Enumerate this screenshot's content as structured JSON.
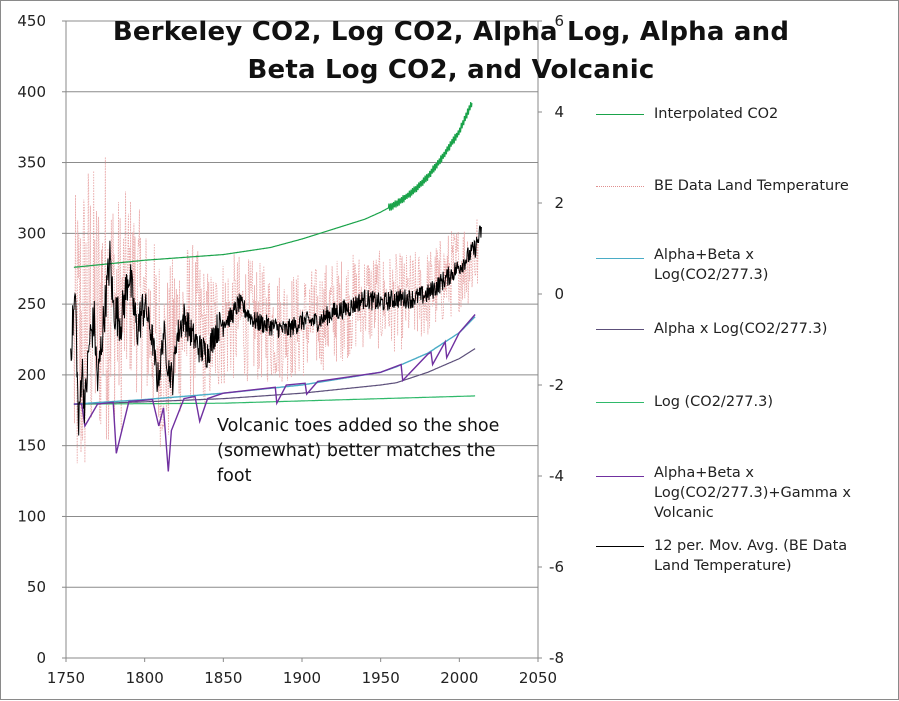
{
  "chart_data": {
    "type": "line",
    "title_lines": [
      "Berkeley CO2, Log CO2, Alpha Log, Alpha and",
      "Beta Log CO2, and Volcanic"
    ],
    "xlim": [
      1750,
      2050
    ],
    "x_ticks": [
      1750,
      1800,
      1850,
      1900,
      1950,
      2000,
      2050
    ],
    "ylim_left": [
      0,
      450
    ],
    "y_left_ticks": [
      0,
      50,
      100,
      150,
      200,
      250,
      300,
      350,
      400,
      450
    ],
    "ylim_right": [
      -8,
      6
    ],
    "y_right_ticks": [
      -8,
      -6,
      -4,
      -2,
      0,
      2,
      4,
      6
    ],
    "grid": "horizontal",
    "legend_position": "right",
    "annotation": "Volcanic toes added so the shoe (somewhat) better matches the foot",
    "series": [
      {
        "name": "Interpolated CO2",
        "axis": "left",
        "color": "#1aa34a",
        "x": [
          1755,
          1800,
          1850,
          1880,
          1900,
          1920,
          1940,
          1950,
          1960,
          1970,
          1980,
          1990,
          2000,
          2008
        ],
        "values": [
          276,
          281,
          285,
          290,
          296,
          303,
          310,
          315,
          321,
          329,
          340,
          355,
          372,
          392
        ]
      },
      {
        "name": "BE Data Land Temperature",
        "axis": "right",
        "color": "#e8a5a5",
        "x": [
          1755,
          1760,
          1765,
          1770,
          1775,
          1780,
          1785,
          1790,
          1800,
          1810,
          1815,
          1820,
          1830,
          1840,
          1850,
          1860,
          1880,
          1900,
          1920,
          1940,
          1960,
          1980,
          2000,
          2012
        ],
        "values": [
          -1.5,
          -1.0,
          -0.3,
          -0.5,
          0.0,
          -0.2,
          -0.5,
          0.2,
          -0.4,
          -1.2,
          -1.5,
          -0.8,
          -0.6,
          -1.0,
          -0.6,
          -0.5,
          -0.7,
          -0.7,
          -0.4,
          -0.1,
          -0.2,
          0.0,
          0.6,
          0.9
        ],
        "spread": [
          3.5,
          4.0,
          3.6,
          3.0,
          3.4,
          2.8,
          2.6,
          2.2,
          2.0,
          2.2,
          2.0,
          2.0,
          1.8,
          1.6,
          1.5,
          1.4,
          1.3,
          1.2,
          1.2,
          1.1,
          1.1,
          1.0,
          1.0,
          1.0
        ]
      },
      {
        "name": "Alpha+Beta x\nLog(CO2/277.3)",
        "axis": "right",
        "color": "#4aacc6",
        "x": [
          1755,
          1800,
          1850,
          1900,
          1950,
          1960,
          1980,
          2000,
          2010
        ],
        "values": [
          -2.42,
          -2.32,
          -2.18,
          -2.0,
          -1.72,
          -1.6,
          -1.3,
          -0.85,
          -0.5
        ]
      },
      {
        "name": "Alpha x Log(CO2/277.3)",
        "axis": "right",
        "color": "#5c4f7a",
        "x": [
          1755,
          1800,
          1850,
          1900,
          1950,
          1960,
          1980,
          2000,
          2010
        ],
        "values": [
          -2.42,
          -2.37,
          -2.3,
          -2.18,
          -2.0,
          -1.95,
          -1.72,
          -1.42,
          -1.2
        ]
      },
      {
        "name": "Log (CO2/277.3)",
        "axis": "right",
        "color": "#2fb96a",
        "x": [
          1755,
          1850,
          1950,
          2010
        ],
        "values": [
          -2.42,
          -2.4,
          -2.3,
          -2.24
        ]
      },
      {
        "name": "Alpha+Beta x\nLog(CO2/277.3)+Gamma x\nVolcanic",
        "axis": "right",
        "color": "#7030a0",
        "x": [
          1755,
          1760,
          1762,
          1770,
          1780,
          1782,
          1790,
          1805,
          1809,
          1812,
          1815,
          1817,
          1825,
          1832,
          1835,
          1840,
          1850,
          1883,
          1884,
          1890,
          1902,
          1903,
          1910,
          1950,
          1963,
          1964,
          1980,
          1982,
          1983,
          1991,
          1992,
          2000,
          2010
        ],
        "values": [
          -2.42,
          -2.42,
          -2.9,
          -2.42,
          -2.38,
          -3.5,
          -2.36,
          -2.32,
          -2.9,
          -2.5,
          -3.9,
          -3.0,
          -2.3,
          -2.25,
          -2.8,
          -2.3,
          -2.18,
          -2.05,
          -2.4,
          -2.0,
          -1.96,
          -2.2,
          -1.92,
          -1.72,
          -1.55,
          -1.9,
          -1.32,
          -1.28,
          -1.55,
          -1.05,
          -1.4,
          -0.85,
          -0.45
        ]
      },
      {
        "name": "12 per. Mov. Avg. (BE Data\nLand Temperature)",
        "axis": "right",
        "color": "#000000",
        "x": [
          1753,
          1756,
          1758,
          1760,
          1762,
          1765,
          1768,
          1770,
          1775,
          1778,
          1780,
          1785,
          1790,
          1795,
          1800,
          1805,
          1808,
          1810,
          1812,
          1815,
          1818,
          1820,
          1825,
          1830,
          1835,
          1840,
          1845,
          1850,
          1855,
          1860,
          1870,
          1880,
          1890,
          1900,
          1910,
          1920,
          1930,
          1940,
          1950,
          1960,
          1970,
          1980,
          1990,
          2000,
          2010,
          2014
        ],
        "values": [
          -1.2,
          0.0,
          -3.1,
          -1.5,
          -2.5,
          -1.0,
          -0.6,
          -2.0,
          -0.2,
          0.8,
          -0.3,
          -0.6,
          0.5,
          -0.8,
          -0.2,
          -1.0,
          -1.9,
          -1.6,
          -0.8,
          -1.6,
          -1.9,
          -1.0,
          -0.5,
          -0.9,
          -1.2,
          -1.3,
          -0.8,
          -0.6,
          -0.5,
          -0.2,
          -0.6,
          -0.7,
          -0.8,
          -0.6,
          -0.6,
          -0.4,
          -0.3,
          -0.1,
          -0.2,
          -0.1,
          -0.1,
          0.0,
          0.3,
          0.6,
          1.0,
          1.4
        ]
      }
    ]
  }
}
